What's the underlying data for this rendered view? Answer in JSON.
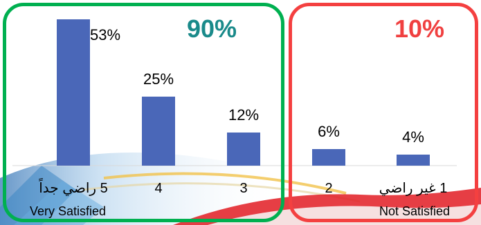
{
  "chart_data": {
    "type": "bar",
    "categories": [
      "5 راضي جداً",
      "4",
      "3",
      "2",
      "1 غير راضي"
    ],
    "category_sublabels": [
      "Very Satisfied",
      "",
      "",
      "",
      "Not Satisfied"
    ],
    "values": [
      53,
      25,
      12,
      6,
      4
    ],
    "value_labels": [
      "53%",
      "25%",
      "12%",
      "6%",
      "4%"
    ],
    "ylim": [
      0,
      55
    ],
    "grid": false,
    "legend": "none",
    "bar_color": "#4A67B8",
    "groups": [
      {
        "label": "90%",
        "categories": [
          0,
          1,
          2
        ],
        "color": "#00B050",
        "text_color": "#1A8A8A"
      },
      {
        "label": "10%",
        "categories": [
          3,
          4
        ],
        "color": "#F44040",
        "text_color": "#F04040"
      }
    ]
  }
}
